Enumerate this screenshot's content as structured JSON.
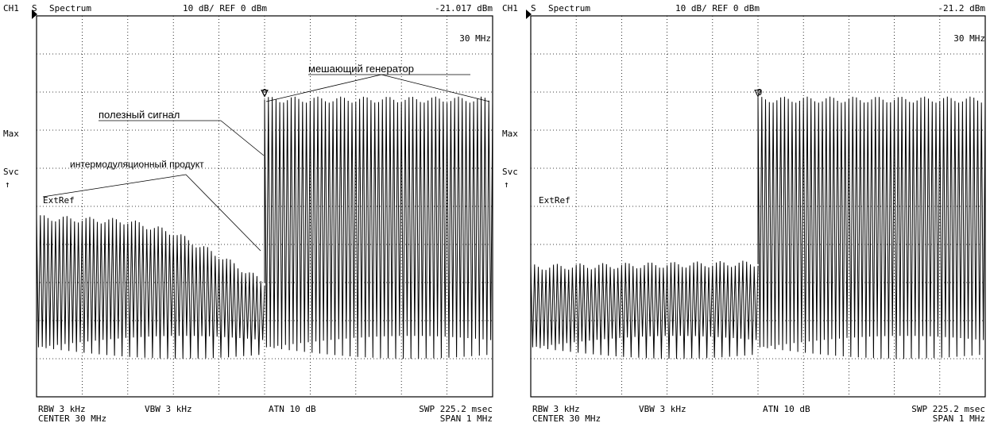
{
  "chart_data": [
    {
      "type": "line",
      "panel": "left",
      "header": {
        "channel": "CH1",
        "mode": "S",
        "name": "Spectrum",
        "scale": "10 dB/ REF 0 dBm",
        "marker_value": "-21.017 dBm",
        "marker_freq": "30 MHz"
      },
      "side_labels": [
        "Max",
        "Svc",
        "↑",
        "ExtRef"
      ],
      "marker_label": "0",
      "footer": {
        "rbw": "RBW  3 kHz",
        "vbw": "VBW 3 kHz",
        "atn": "ATN  10 dB",
        "swp": "SWP  225.2 msec",
        "center": "CENTER  30 MHz",
        "span": "SPAN  1 MHz"
      },
      "annotations": {
        "interferer": "мешающий генератор",
        "useful": "полезный сигнал",
        "imd": "интермодуляционный продукт"
      },
      "ref_level_dbm": 0,
      "db_per_div": 10,
      "center_mhz": 30,
      "span_mhz": 1,
      "ylim": [
        -100,
        0
      ],
      "marker_x": 0.5,
      "series": [
        {
          "segment": "lower",
          "x_range": [
            0,
            0.5
          ],
          "peak_dbm": [
            [
              0,
              -53
            ],
            [
              0.2,
              -54
            ],
            [
              0.3,
              -57
            ],
            [
              0.4,
              -63
            ],
            [
              0.5,
              -70
            ]
          ],
          "trough_dbm": [
            [
              0,
              -87
            ],
            [
              0.5,
              -87
            ]
          ]
        },
        {
          "segment": "upper",
          "x_range": [
            0.5,
            1.0
          ],
          "peak_dbm": [
            [
              0.5,
              -22
            ],
            [
              1.0,
              -22
            ]
          ],
          "trough_dbm": [
            [
              0.5,
              -87
            ],
            [
              1.0,
              -87
            ]
          ]
        }
      ]
    },
    {
      "type": "line",
      "panel": "right",
      "header": {
        "channel": "CH1",
        "mode": "S",
        "name": "Spectrum",
        "scale": "10 dB/ REF 0 dBm",
        "marker_value": "-21.2 dBm",
        "marker_freq": "30 MHz"
      },
      "side_labels": [
        "Max",
        "Svc",
        "↑",
        "ExtRef"
      ],
      "marker_label": "0",
      "footer": {
        "rbw": "RBW  3 kHz",
        "vbw": "VBW 3 kHz",
        "atn": "ATN  10 dB",
        "swp": "SWP  225.2 msec",
        "center": "CENTER  30 MHz",
        "span": "SPAN  1 MHz"
      },
      "ref_level_dbm": 0,
      "db_per_div": 10,
      "center_mhz": 30,
      "span_mhz": 1,
      "ylim": [
        -100,
        0
      ],
      "marker_x": 0.5,
      "series": [
        {
          "segment": "lower",
          "x_range": [
            0,
            0.5
          ],
          "peak_dbm": [
            [
              0,
              -66
            ],
            [
              0.5,
              -65
            ]
          ],
          "trough_dbm": [
            [
              0,
              -87
            ],
            [
              0.5,
              -87
            ]
          ]
        },
        {
          "segment": "upper",
          "x_range": [
            0.5,
            1.0
          ],
          "peak_dbm": [
            [
              0.5,
              -22
            ],
            [
              1.0,
              -22
            ]
          ],
          "trough_dbm": [
            [
              0.5,
              -87
            ],
            [
              1.0,
              -87
            ]
          ]
        }
      ]
    }
  ]
}
